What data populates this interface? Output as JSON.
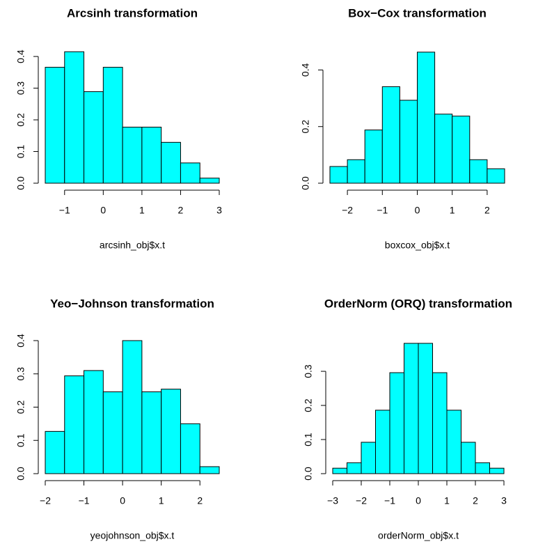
{
  "chart_data": [
    {
      "type": "histogram",
      "title": "Arcsinh transformation",
      "xlabel": "arcsinh_obj$x.t",
      "color": "#00ffff",
      "bins": [
        -1.5,
        -1,
        -0.5,
        0,
        0.5,
        1,
        1.5,
        2,
        2.5,
        3
      ],
      "values": [
        0.366,
        0.415,
        0.289,
        0.366,
        0.177,
        0.177,
        0.129,
        0.064,
        0.016
      ],
      "xlim": [
        -1.5,
        3
      ],
      "ylim": [
        0,
        0.42
      ],
      "xticks": [
        {
          "value": -1,
          "label": "−1"
        },
        0,
        1,
        2,
        3
      ],
      "yticks": [
        {
          "value": 0,
          "label": "0.0"
        },
        0.1,
        0.2,
        0.3,
        0.4
      ]
    },
    {
      "type": "histogram",
      "title": "Box−Cox transformation",
      "xlabel": "boxcox_obj$x.t",
      "color": "#00ffff",
      "bins": [
        -2.5,
        -2,
        -1.5,
        -1,
        -0.5,
        0,
        0.5,
        1,
        1.5,
        2,
        2.5
      ],
      "values": [
        0.059,
        0.083,
        0.188,
        0.341,
        0.293,
        0.463,
        0.244,
        0.237,
        0.083,
        0.051
      ],
      "xlim": [
        -2.5,
        2.5
      ],
      "ylim": [
        0,
        0.47
      ],
      "xticks": [
        {
          "value": -2,
          "label": "−2"
        },
        {
          "value": -1,
          "label": "−1"
        },
        0,
        1,
        2
      ],
      "yticks": [
        {
          "value": 0,
          "label": "0.0"
        },
        0.2,
        0.4
      ]
    },
    {
      "type": "histogram",
      "title": "Yeo−Johnson transformation",
      "xlabel": "yeojohnson_obj$x.t",
      "color": "#00ffff",
      "bins": [
        -2,
        -1.5,
        -1,
        -0.5,
        0,
        0.5,
        1,
        1.5,
        2,
        2.5
      ],
      "values": [
        0.127,
        0.294,
        0.31,
        0.246,
        0.4,
        0.246,
        0.254,
        0.15,
        0.021
      ],
      "xlim": [
        -2,
        2.5
      ],
      "ylim": [
        0,
        0.4
      ],
      "xticks": [
        {
          "value": -2,
          "label": "−2"
        },
        {
          "value": -1,
          "label": "−1"
        },
        0,
        1,
        2
      ],
      "yticks": [
        {
          "value": 0,
          "label": "0.0"
        },
        0.1,
        0.2,
        0.3,
        0.4
      ]
    },
    {
      "type": "histogram",
      "title": "OrderNorm (ORQ) transformation",
      "xlabel": "orderNorm_obj$x.t",
      "color": "#00ffff",
      "bins": [
        -3,
        -2.5,
        -2,
        -1.5,
        -1,
        -0.5,
        0,
        0.5,
        1,
        1.5,
        2,
        2.5,
        3
      ],
      "values": [
        0.016,
        0.032,
        0.092,
        0.186,
        0.296,
        0.382,
        0.382,
        0.296,
        0.186,
        0.092,
        0.032,
        0.016
      ],
      "xlim": [
        -3,
        3
      ],
      "ylim": [
        0,
        0.39
      ],
      "xticks": [
        {
          "value": -3,
          "label": "−3"
        },
        {
          "value": -2,
          "label": "−2"
        },
        {
          "value": -1,
          "label": "−1"
        },
        0,
        1,
        2,
        3
      ],
      "yticks": [
        {
          "value": 0,
          "label": "0.0"
        },
        0.1,
        0.2,
        0.3
      ]
    }
  ]
}
